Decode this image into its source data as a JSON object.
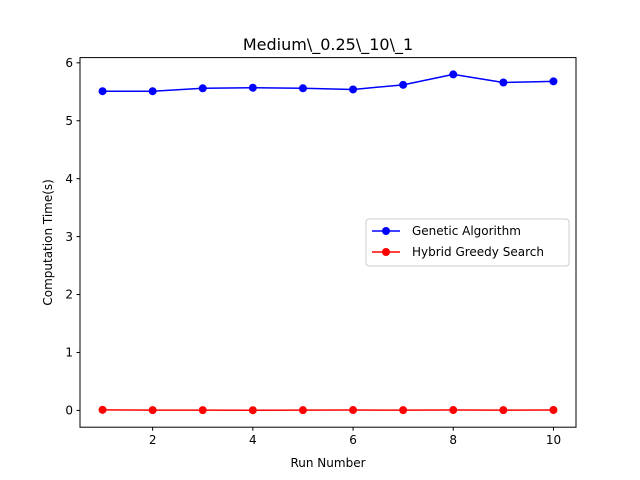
{
  "chart_data": {
    "type": "line",
    "title": "Medium\\_0.25\\_10\\_1",
    "xlabel": "Run Number",
    "ylabel": "Computation Time(s)",
    "xlim": [
      0.55,
      10.45
    ],
    "ylim": [
      -0.29,
      6.09
    ],
    "xticks": [
      2,
      4,
      6,
      8,
      10
    ],
    "yticks": [
      0,
      1,
      2,
      3,
      4,
      5,
      6
    ],
    "grid": false,
    "legend_position": "center-right",
    "x": [
      1,
      2,
      3,
      4,
      5,
      6,
      7,
      8,
      9,
      10
    ],
    "series": [
      {
        "name": "Genetic Algorithm",
        "color": "#0000ff",
        "marker": "circle",
        "values": [
          5.51,
          5.51,
          5.56,
          5.57,
          5.56,
          5.54,
          5.62,
          5.8,
          5.66,
          5.68
        ]
      },
      {
        "name": "Hybrid Greedy Search",
        "color": "#ff0000",
        "marker": "circle",
        "values": [
          0.01,
          0.005,
          0.005,
          0.003,
          0.004,
          0.006,
          0.005,
          0.006,
          0.005,
          0.007
        ]
      }
    ]
  }
}
